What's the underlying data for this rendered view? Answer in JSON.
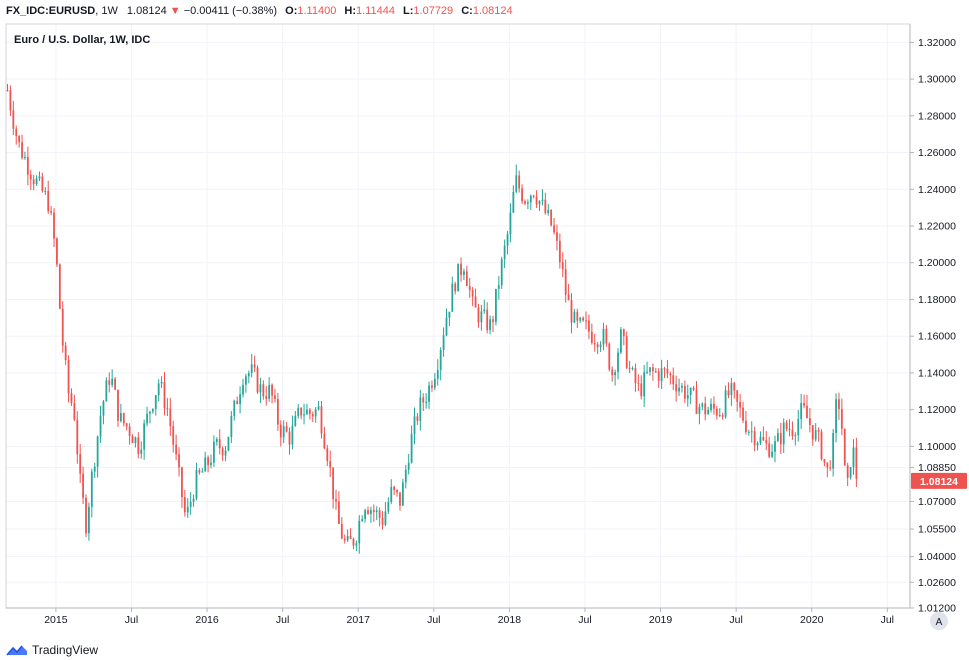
{
  "header": {
    "symbol": "FX_IDC:EURUSD",
    "interval": "1W",
    "last": "1.08124",
    "change": "−0.00411 (−0.38%)",
    "o_label": "O:",
    "o_value": "1.11400",
    "h_label": "H:",
    "h_value": "1.11444",
    "l_label": "L:",
    "l_value": "1.07729",
    "c_label": "C:",
    "c_value": "1.08124"
  },
  "legend": {
    "title": "Euro / U.S. Dollar, 1W, IDC"
  },
  "price_tag": "1.08124",
  "auto_button": "A",
  "footer": {
    "brand": "TradingView"
  },
  "colors": {
    "up": "#26a69a",
    "down": "#ef5350",
    "grid": "#f0f3fa",
    "axis": "#d1d4dc",
    "text": "#131722"
  },
  "chart_data": {
    "type": "candlestick",
    "title": "Euro / U.S. Dollar, 1W, IDC",
    "ylim": [
      1.012,
      1.33
    ],
    "xlim": [
      2014.67,
      2020.65
    ],
    "y_ticks": [
      "1.32000",
      "1.30000",
      "1.28000",
      "1.26000",
      "1.24000",
      "1.22000",
      "1.20000",
      "1.18000",
      "1.16000",
      "1.14000",
      "1.12000",
      "1.10000",
      "1.08850",
      "1.07000",
      "1.05500",
      "1.04000",
      "1.02600",
      "1.01200"
    ],
    "x_ticks": [
      {
        "label": "2015",
        "t": 2015.0
      },
      {
        "label": "Jul",
        "t": 2015.5
      },
      {
        "label": "2016",
        "t": 2016.0
      },
      {
        "label": "Jul",
        "t": 2016.5
      },
      {
        "label": "2017",
        "t": 2017.0
      },
      {
        "label": "Jul",
        "t": 2017.5
      },
      {
        "label": "2018",
        "t": 2018.0
      },
      {
        "label": "Jul",
        "t": 2018.5
      },
      {
        "label": "2019",
        "t": 2019.0
      },
      {
        "label": "Jul",
        "t": 2019.5
      },
      {
        "label": "2020",
        "t": 2020.0
      },
      {
        "label": "Jul",
        "t": 2020.5
      }
    ],
    "close_path": [
      [
        2014.68,
        1.294
      ],
      [
        2014.75,
        1.265
      ],
      [
        2014.85,
        1.247
      ],
      [
        2014.95,
        1.233
      ],
      [
        2015.0,
        1.205
      ],
      [
        2015.04,
        1.16
      ],
      [
        2015.08,
        1.13
      ],
      [
        2015.12,
        1.12
      ],
      [
        2015.16,
        1.08
      ],
      [
        2015.2,
        1.058
      ],
      [
        2015.24,
        1.085
      ],
      [
        2015.3,
        1.12
      ],
      [
        2015.36,
        1.14
      ],
      [
        2015.42,
        1.115
      ],
      [
        2015.48,
        1.11
      ],
      [
        2015.55,
        1.1
      ],
      [
        2015.62,
        1.12
      ],
      [
        2015.68,
        1.135
      ],
      [
        2015.74,
        1.12
      ],
      [
        2015.8,
        1.09
      ],
      [
        2015.86,
        1.06
      ],
      [
        2015.92,
        1.08
      ],
      [
        2016.0,
        1.09
      ],
      [
        2016.06,
        1.1
      ],
      [
        2016.12,
        1.1
      ],
      [
        2016.18,
        1.12
      ],
      [
        2016.24,
        1.14
      ],
      [
        2016.3,
        1.14
      ],
      [
        2016.36,
        1.13
      ],
      [
        2016.42,
        1.13
      ],
      [
        2016.48,
        1.11
      ],
      [
        2016.55,
        1.105
      ],
      [
        2016.62,
        1.12
      ],
      [
        2016.68,
        1.118
      ],
      [
        2016.74,
        1.12
      ],
      [
        2016.8,
        1.095
      ],
      [
        2016.86,
        1.06
      ],
      [
        2016.92,
        1.045
      ],
      [
        2016.98,
        1.05
      ],
      [
        2017.04,
        1.07
      ],
      [
        2017.1,
        1.065
      ],
      [
        2017.16,
        1.06
      ],
      [
        2017.22,
        1.075
      ],
      [
        2017.28,
        1.07
      ],
      [
        2017.34,
        1.1
      ],
      [
        2017.4,
        1.12
      ],
      [
        2017.46,
        1.13
      ],
      [
        2017.52,
        1.145
      ],
      [
        2017.58,
        1.17
      ],
      [
        2017.64,
        1.19
      ],
      [
        2017.7,
        1.2
      ],
      [
        2017.76,
        1.175
      ],
      [
        2017.82,
        1.17
      ],
      [
        2017.88,
        1.165
      ],
      [
        2017.94,
        1.195
      ],
      [
        2018.0,
        1.22
      ],
      [
        2018.04,
        1.245
      ],
      [
        2018.1,
        1.235
      ],
      [
        2018.16,
        1.24
      ],
      [
        2018.22,
        1.23
      ],
      [
        2018.28,
        1.22
      ],
      [
        2018.34,
        1.2
      ],
      [
        2018.38,
        1.18
      ],
      [
        2018.44,
        1.165
      ],
      [
        2018.5,
        1.165
      ],
      [
        2018.56,
        1.16
      ],
      [
        2018.62,
        1.16
      ],
      [
        2018.68,
        1.14
      ],
      [
        2018.74,
        1.16
      ],
      [
        2018.8,
        1.14
      ],
      [
        2018.86,
        1.13
      ],
      [
        2018.92,
        1.14
      ],
      [
        2018.98,
        1.14
      ],
      [
        2019.04,
        1.14
      ],
      [
        2019.1,
        1.135
      ],
      [
        2019.16,
        1.13
      ],
      [
        2019.22,
        1.125
      ],
      [
        2019.28,
        1.12
      ],
      [
        2019.34,
        1.12
      ],
      [
        2019.4,
        1.12
      ],
      [
        2019.46,
        1.13
      ],
      [
        2019.52,
        1.12
      ],
      [
        2019.58,
        1.11
      ],
      [
        2019.64,
        1.105
      ],
      [
        2019.7,
        1.1
      ],
      [
        2019.76,
        1.1
      ],
      [
        2019.82,
        1.11
      ],
      [
        2019.88,
        1.11
      ],
      [
        2019.94,
        1.12
      ],
      [
        2020.0,
        1.11
      ],
      [
        2020.06,
        1.1
      ],
      [
        2020.1,
        1.085
      ],
      [
        2020.14,
        1.1
      ],
      [
        2020.17,
        1.13
      ],
      [
        2020.2,
        1.11
      ],
      [
        2020.23,
        1.07
      ],
      [
        2020.25,
        1.09
      ],
      [
        2020.27,
        1.1
      ],
      [
        2020.3,
        1.08124
      ]
    ]
  }
}
